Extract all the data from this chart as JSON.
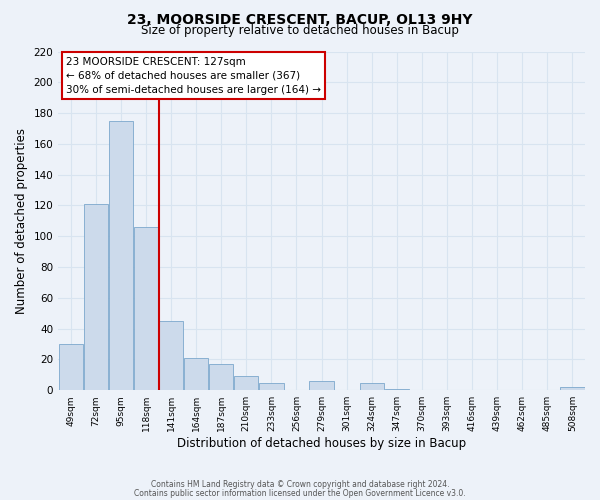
{
  "title": "23, MOORSIDE CRESCENT, BACUP, OL13 9HY",
  "subtitle": "Size of property relative to detached houses in Bacup",
  "xlabel": "Distribution of detached houses by size in Bacup",
  "ylabel": "Number of detached properties",
  "bar_labels": [
    "49sqm",
    "72sqm",
    "95sqm",
    "118sqm",
    "141sqm",
    "164sqm",
    "187sqm",
    "210sqm",
    "233sqm",
    "256sqm",
    "279sqm",
    "301sqm",
    "324sqm",
    "347sqm",
    "370sqm",
    "393sqm",
    "416sqm",
    "439sqm",
    "462sqm",
    "485sqm",
    "508sqm"
  ],
  "bar_values": [
    30,
    121,
    175,
    106,
    45,
    21,
    17,
    9,
    5,
    0,
    6,
    0,
    5,
    1,
    0,
    0,
    0,
    0,
    0,
    0,
    2
  ],
  "bar_color": "#ccdaeb",
  "bar_edge_color": "#7ca8cc",
  "grid_color": "#d8e4f0",
  "background_color": "#edf2f9",
  "vline_color": "#cc0000",
  "annotation_title": "23 MOORSIDE CRESCENT: 127sqm",
  "annotation_line1": "← 68% of detached houses are smaller (367)",
  "annotation_line2": "30% of semi-detached houses are larger (164) →",
  "annotation_box_color": "#ffffff",
  "annotation_box_edge": "#cc0000",
  "ylim": [
    0,
    220
  ],
  "yticks": [
    0,
    20,
    40,
    60,
    80,
    100,
    120,
    140,
    160,
    180,
    200,
    220
  ],
  "footer1": "Contains HM Land Registry data © Crown copyright and database right 2024.",
  "footer2": "Contains public sector information licensed under the Open Government Licence v3.0."
}
